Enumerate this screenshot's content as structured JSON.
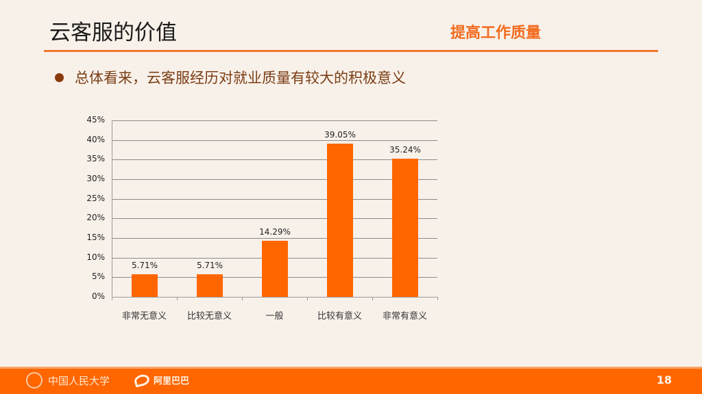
{
  "slide": {
    "title": "云客服的价值",
    "subtitle": "提高工作质量",
    "bullet": "总体看来，云客服经历对就业质量有较大的积极意义",
    "page_number": "18"
  },
  "footer": {
    "logo_left": "中国人民大学",
    "logo_right": "阿里巴巴",
    "accent_color": "#ff6600"
  },
  "chart_data": {
    "type": "bar",
    "title": "",
    "xlabel": "",
    "ylabel": "",
    "categories": [
      "非常无意义",
      "比较无意义",
      "一般",
      "比较有意义",
      "非常有意义"
    ],
    "values": [
      5.71,
      5.71,
      14.29,
      39.05,
      35.24
    ],
    "value_labels": [
      "5.71%",
      "5.71%",
      "14.29%",
      "39.05%",
      "35.24%"
    ],
    "ylim": [
      0,
      45
    ],
    "yticks": [
      "0%",
      "5%",
      "10%",
      "15%",
      "20%",
      "25%",
      "30%",
      "35%",
      "40%",
      "45%"
    ],
    "grid": true,
    "legend": "none",
    "bar_color": "#ff6600"
  }
}
